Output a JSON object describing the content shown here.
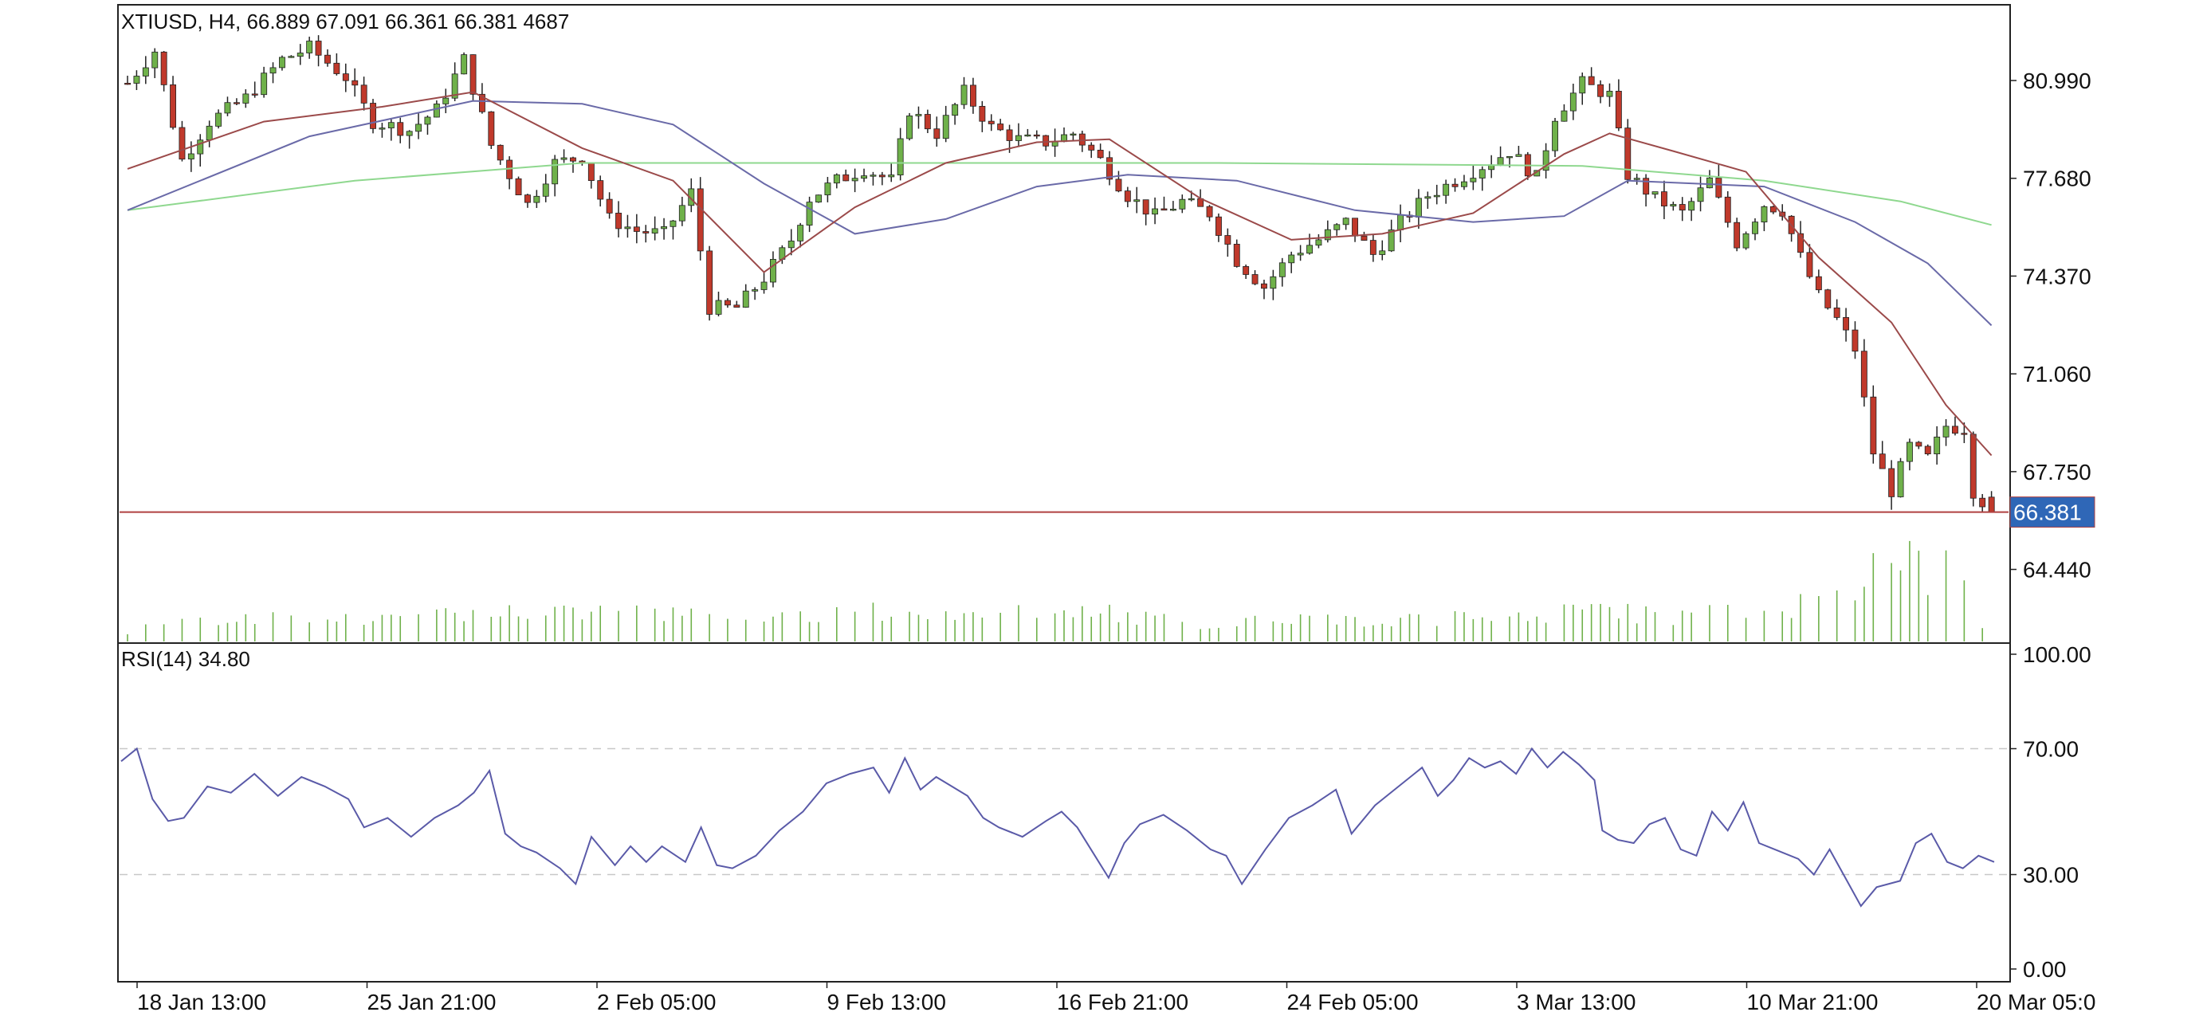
{
  "header": {
    "symbol_line": "XTIUSD, H4, 66.889 67.091 66.361 66.381 4687",
    "rsi_line": "RSI(14) 34.80"
  },
  "price_tag": "66.381",
  "colors": {
    "bull": "#6fb14a",
    "bear": "#c0392b",
    "wick": "#222222",
    "ma_fast": "#9b4a4a",
    "ma_mid": "#6a6aa8",
    "ma_slow": "#8fd88f",
    "rsi_line": "#5a5aa8",
    "current_line": "#b04040",
    "volume": "#6fb14a",
    "tag_bg": "#2f67b7"
  },
  "chart_data": [
    {
      "type": "candlestick",
      "title": "XTIUSD, H4",
      "ylim": [
        62.0,
        83.5
      ],
      "yticks": [
        "80.990",
        "77.680",
        "74.370",
        "71.060",
        "67.750",
        "64.440"
      ],
      "xticks": [
        "18 Jan 13:00",
        "25 Jan 21:00",
        "2 Feb 05:00",
        "9 Feb 13:00",
        "16 Feb 21:00",
        "24 Feb 05:00",
        "3 Mar 13:00",
        "10 Mar 21:00",
        "20 Mar 05:0"
      ],
      "last": {
        "open": 66.889,
        "high": 67.091,
        "low": 66.361,
        "close": 66.381,
        "volume": 4687
      },
      "current_price": 66.381,
      "price_path": [
        [
          0,
          80.9
        ],
        [
          3,
          82.0
        ],
        [
          6,
          78.3
        ],
        [
          9,
          79.6
        ],
        [
          13,
          80.4
        ],
        [
          17,
          81.7
        ],
        [
          20,
          82.1
        ],
        [
          24,
          81.1
        ],
        [
          27,
          79.6
        ],
        [
          31,
          79.3
        ],
        [
          34,
          80.0
        ],
        [
          37,
          81.7
        ],
        [
          40,
          78.8
        ],
        [
          44,
          76.8
        ],
        [
          47,
          78.2
        ],
        [
          50,
          78.4
        ],
        [
          53,
          76.3
        ],
        [
          56,
          75.9
        ],
        [
          59,
          75.8
        ],
        [
          62,
          77.2
        ],
        [
          64,
          73.3
        ],
        [
          67,
          73.3
        ],
        [
          70,
          74.3
        ],
        [
          73,
          75.6
        ],
        [
          75,
          77.0
        ],
        [
          78,
          77.6
        ],
        [
          81,
          78.0
        ],
        [
          84,
          77.6
        ],
        [
          86,
          80.0
        ],
        [
          89,
          79.2
        ],
        [
          92,
          80.6
        ],
        [
          95,
          79.4
        ],
        [
          98,
          79.0
        ],
        [
          101,
          78.9
        ],
        [
          104,
          79.2
        ],
        [
          107,
          78.3
        ],
        [
          110,
          77.1
        ],
        [
          113,
          76.4
        ],
        [
          116,
          76.9
        ],
        [
          119,
          76.5
        ],
        [
          122,
          74.9
        ],
        [
          125,
          74.0
        ],
        [
          128,
          75.1
        ],
        [
          131,
          75.6
        ],
        [
          134,
          76.2
        ],
        [
          137,
          75.1
        ],
        [
          140,
          76.2
        ],
        [
          143,
          77.1
        ],
        [
          146,
          77.6
        ],
        [
          149,
          78.1
        ],
        [
          152,
          78.6
        ],
        [
          155,
          77.7
        ],
        [
          157,
          79.8
        ],
        [
          160,
          80.9
        ],
        [
          163,
          80.5
        ],
        [
          165,
          77.8
        ],
        [
          168,
          77.0
        ],
        [
          171,
          76.5
        ],
        [
          174,
          77.6
        ],
        [
          177,
          75.5
        ],
        [
          180,
          76.8
        ],
        [
          182,
          76.6
        ],
        [
          184,
          75.0
        ],
        [
          186,
          73.7
        ],
        [
          188,
          72.9
        ],
        [
          190,
          71.9
        ],
        [
          192,
          68.4
        ],
        [
          194,
          67.1
        ],
        [
          196,
          68.6
        ],
        [
          198,
          68.2
        ],
        [
          200,
          69.3
        ],
        [
          202,
          69.2
        ],
        [
          203,
          67.1
        ],
        [
          205,
          66.4
        ]
      ],
      "ma_fast": [
        [
          0,
          78.0
        ],
        [
          15,
          79.6
        ],
        [
          28,
          80.1
        ],
        [
          38,
          80.6
        ],
        [
          50,
          78.7
        ],
        [
          60,
          77.6
        ],
        [
          70,
          74.5
        ],
        [
          80,
          76.7
        ],
        [
          90,
          78.2
        ],
        [
          100,
          78.9
        ],
        [
          108,
          79.0
        ],
        [
          118,
          77.0
        ],
        [
          128,
          75.6
        ],
        [
          138,
          75.8
        ],
        [
          148,
          76.5
        ],
        [
          158,
          78.5
        ],
        [
          163,
          79.2
        ],
        [
          170,
          78.6
        ],
        [
          178,
          77.9
        ],
        [
          186,
          75.0
        ],
        [
          194,
          72.8
        ],
        [
          200,
          70.0
        ],
        [
          205,
          68.3
        ]
      ],
      "ma_mid": [
        [
          0,
          76.6
        ],
        [
          20,
          79.1
        ],
        [
          38,
          80.3
        ],
        [
          50,
          80.2
        ],
        [
          60,
          79.5
        ],
        [
          70,
          77.5
        ],
        [
          80,
          75.8
        ],
        [
          90,
          76.3
        ],
        [
          100,
          77.4
        ],
        [
          110,
          77.8
        ],
        [
          122,
          77.6
        ],
        [
          135,
          76.6
        ],
        [
          148,
          76.2
        ],
        [
          158,
          76.4
        ],
        [
          165,
          77.6
        ],
        [
          180,
          77.4
        ],
        [
          190,
          76.2
        ],
        [
          198,
          74.8
        ],
        [
          205,
          72.7
        ]
      ],
      "ma_slow": [
        [
          0,
          76.6
        ],
        [
          25,
          77.6
        ],
        [
          50,
          78.2
        ],
        [
          80,
          78.2
        ],
        [
          120,
          78.2
        ],
        [
          160,
          78.1
        ],
        [
          180,
          77.6
        ],
        [
          195,
          76.9
        ],
        [
          205,
          76.1
        ]
      ],
      "volume_relative": [
        [
          0,
          0.06
        ],
        [
          1,
          0.18
        ],
        [
          5,
          0.25
        ],
        [
          10,
          0.2
        ],
        [
          15,
          0.22
        ],
        [
          20,
          0.2
        ],
        [
          30,
          0.22
        ],
        [
          45,
          0.3
        ],
        [
          60,
          0.28
        ],
        [
          70,
          0.2
        ],
        [
          80,
          0.3
        ],
        [
          90,
          0.25
        ],
        [
          100,
          0.35
        ],
        [
          110,
          0.25
        ],
        [
          120,
          0.15
        ],
        [
          130,
          0.25
        ],
        [
          140,
          0.2
        ],
        [
          150,
          0.25
        ],
        [
          160,
          0.3
        ],
        [
          170,
          0.25
        ],
        [
          180,
          0.3
        ],
        [
          186,
          0.4
        ],
        [
          190,
          0.35
        ],
        [
          192,
          0.7
        ],
        [
          196,
          0.75
        ],
        [
          199,
          0.65
        ],
        [
          201,
          0.72
        ],
        [
          203,
          0.3
        ],
        [
          205,
          0.1
        ]
      ]
    },
    {
      "type": "line",
      "title": "RSI(14)",
      "ylim": [
        0,
        100
      ],
      "yticks": [
        "100.00",
        "70.00",
        "30.00",
        "0.00"
      ],
      "reference_lines": [
        70,
        30
      ],
      "series": [
        {
          "name": "RSI(14)",
          "points": [
            [
              0,
              66
            ],
            [
              2,
              70
            ],
            [
              4,
              54
            ],
            [
              6,
              47
            ],
            [
              8,
              48
            ],
            [
              11,
              58
            ],
            [
              14,
              56
            ],
            [
              17,
              62
            ],
            [
              20,
              55
            ],
            [
              23,
              61
            ],
            [
              26,
              58
            ],
            [
              29,
              54
            ],
            [
              31,
              45
            ],
            [
              34,
              48
            ],
            [
              37,
              42
            ],
            [
              40,
              48
            ],
            [
              43,
              52
            ],
            [
              45,
              56
            ],
            [
              47,
              63
            ],
            [
              49,
              43
            ],
            [
              51,
              39
            ],
            [
              53,
              37
            ],
            [
              56,
              32
            ],
            [
              58,
              27
            ],
            [
              60,
              42
            ],
            [
              63,
              33
            ],
            [
              65,
              39
            ],
            [
              67,
              34
            ],
            [
              69,
              39
            ],
            [
              72,
              34
            ],
            [
              74,
              45
            ],
            [
              76,
              33
            ],
            [
              78,
              32
            ],
            [
              81,
              36
            ],
            [
              84,
              44
            ],
            [
              87,
              50
            ],
            [
              90,
              59
            ],
            [
              93,
              62
            ],
            [
              96,
              64
            ],
            [
              98,
              56
            ],
            [
              100,
              67
            ],
            [
              102,
              57
            ],
            [
              104,
              61
            ],
            [
              106,
              58
            ],
            [
              108,
              55
            ],
            [
              110,
              48
            ],
            [
              112,
              45
            ],
            [
              115,
              42
            ],
            [
              118,
              47
            ],
            [
              120,
              50
            ],
            [
              122,
              45
            ],
            [
              124,
              37
            ],
            [
              126,
              29
            ],
            [
              128,
              40
            ],
            [
              130,
              46
            ],
            [
              133,
              49
            ],
            [
              136,
              44
            ],
            [
              139,
              38
            ],
            [
              141,
              36
            ],
            [
              143,
              27
            ],
            [
              146,
              38
            ],
            [
              149,
              48
            ],
            [
              152,
              52
            ],
            [
              155,
              57
            ],
            [
              157,
              43
            ],
            [
              160,
              52
            ],
            [
              163,
              58
            ],
            [
              166,
              64
            ],
            [
              168,
              55
            ],
            [
              170,
              60
            ],
            [
              172,
              67
            ],
            [
              174,
              64
            ],
            [
              176,
              66
            ],
            [
              178,
              62
            ],
            [
              180,
              70
            ],
            [
              182,
              64
            ],
            [
              184,
              69
            ],
            [
              186,
              65
            ],
            [
              188,
              60
            ],
            [
              189,
              44
            ],
            [
              191,
              41
            ],
            [
              193,
              40
            ],
            [
              195,
              46
            ],
            [
              197,
              48
            ],
            [
              199,
              38
            ],
            [
              201,
              36
            ],
            [
              203,
              50
            ],
            [
              205,
              44
            ],
            [
              207,
              53
            ],
            [
              209,
              40
            ],
            [
              211,
              38
            ],
            [
              214,
              35
            ],
            [
              216,
              30
            ],
            [
              218,
              38
            ],
            [
              220,
              29
            ],
            [
              222,
              20
            ],
            [
              224,
              26
            ],
            [
              227,
              28
            ],
            [
              229,
              40
            ],
            [
              231,
              43
            ],
            [
              233,
              34
            ],
            [
              235,
              32
            ],
            [
              237,
              36
            ],
            [
              239,
              34
            ]
          ]
        }
      ],
      "current_value": 34.8
    }
  ]
}
